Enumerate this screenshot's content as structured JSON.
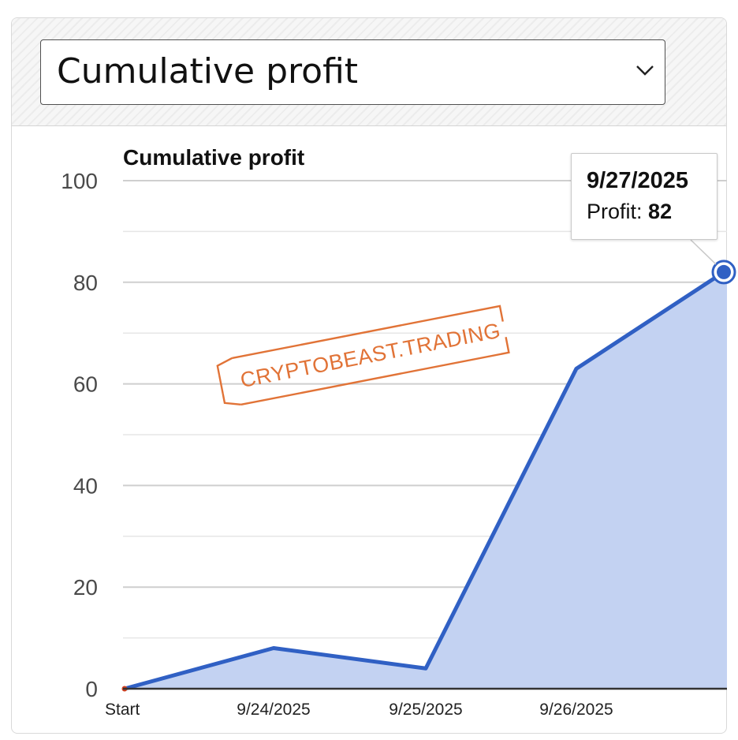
{
  "selector": {
    "value": "Cumulative profit"
  },
  "tooltip": {
    "date": "9/27/2025",
    "label": "Profit:",
    "value": "82"
  },
  "watermark": {
    "text": "CRYPTOBEAST.TRADING",
    "color": "#e17337"
  },
  "colors": {
    "line": "#3060c4",
    "area": "#c3d2f2",
    "start_marker": "#d04020"
  },
  "chart_data": {
    "type": "area",
    "title": "Cumulative profit",
    "x": [
      "Start",
      "9/24/2025",
      "9/25/2025",
      "9/26/2025",
      "9/27/2025"
    ],
    "x_tick_labels": [
      "Start",
      "9/24/2025",
      "9/25/2025",
      "9/26/2025"
    ],
    "series": [
      {
        "values": [
          0,
          8,
          4,
          63,
          82
        ]
      }
    ],
    "y_ticks": [
      0,
      20,
      40,
      60,
      80,
      100
    ],
    "ylim": [
      0,
      100
    ],
    "grid": true,
    "legend": "none",
    "highlighted_point": {
      "x": "9/27/2025",
      "y": 82
    }
  }
}
